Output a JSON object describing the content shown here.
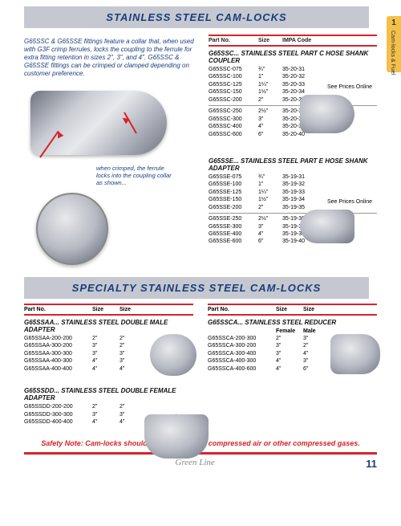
{
  "sideTab": {
    "num": "1",
    "label": "Cam-locks & Fuel"
  },
  "header1": "STAINLESS STEEL CAM-LOCKS",
  "header2": "SPECIALTY STAINLESS STEEL CAM-LOCKS",
  "intro": "G65SSC & G65SSE fittings feature a collar that, when used with G3F crimp ferrules, locks the coupling to the ferrule for extra fitting retention in sizes 2\", 3\", and 4\". G65SSC & G65SSE fittings can be crimped or clamped depending on customer preference.",
  "callout": "when crimped, the ferrule locks into the coupling collar as shown...",
  "tblHdr": {
    "part": "Part No.",
    "size": "Size",
    "impa": "IMPA Code"
  },
  "priceNote": "See Prices Online",
  "sectionC": {
    "title": "G65SSC... STAINLESS STEEL PART C HOSE SHANK COUPLER",
    "rows1": [
      {
        "p": "G65SSC-075",
        "s": "¾\"",
        "i": "35-20-31"
      },
      {
        "p": "G65SSC-100",
        "s": "1\"",
        "i": "35-20-32"
      },
      {
        "p": "G65SSC-125",
        "s": "1¼\"",
        "i": "35-20-33"
      },
      {
        "p": "G65SSC-150",
        "s": "1½\"",
        "i": "35-20-34"
      },
      {
        "p": "G65SSC-200",
        "s": "2\"",
        "i": "35-20-35"
      }
    ],
    "rows2": [
      {
        "p": "G65SSC-250",
        "s": "2½\"",
        "i": "35-20-36"
      },
      {
        "p": "G65SSC-300",
        "s": "3\"",
        "i": "35-20-37"
      },
      {
        "p": "G65SSC-400",
        "s": "4\"",
        "i": "35-20-38"
      },
      {
        "p": "G65SSC-600",
        "s": "6\"",
        "i": "35-20-40"
      }
    ]
  },
  "sectionE": {
    "title": "G65SSE... STAINLESS STEEL PART E HOSE SHANK ADAPTER",
    "rows1": [
      {
        "p": "G65SSE-075",
        "s": "¾\"",
        "i": "35-19-31"
      },
      {
        "p": "G65SSE-100",
        "s": "1\"",
        "i": "35-19-32"
      },
      {
        "p": "G65SSE-125",
        "s": "1¼\"",
        "i": "35-19-33"
      },
      {
        "p": "G65SSE-150",
        "s": "1½\"",
        "i": "35-19-34"
      },
      {
        "p": "G65SSE-200",
        "s": "2\"",
        "i": "35-19-35"
      }
    ],
    "rows2": [
      {
        "p": "G65SSE-250",
        "s": "2½\"",
        "i": "35-19-36"
      },
      {
        "p": "G65SSE-300",
        "s": "3\"",
        "i": "35-19-37"
      },
      {
        "p": "G65SSE-400",
        "s": "4\"",
        "i": "35-19-38"
      },
      {
        "p": "G65SSE-600",
        "s": "6\"",
        "i": "35-19-40"
      }
    ]
  },
  "tblHdr2": {
    "part": "Part No.",
    "s1": "Size",
    "s2": "Size"
  },
  "sectionAA": {
    "title": "G65SSAA... STAINLESS STEEL DOUBLE MALE ADAPTER",
    "rows": [
      {
        "p": "G65SSAA-200-200",
        "s1": "2\"",
        "s2": "2\""
      },
      {
        "p": "G65SSAA-300-200",
        "s1": "3\"",
        "s2": "2\""
      },
      {
        "p": "G65SSAA-300-300",
        "s1": "3\"",
        "s2": "3\""
      },
      {
        "p": "G65SSAA-400-300",
        "s1": "4\"",
        "s2": "3\""
      },
      {
        "p": "G65SSAA-400-400",
        "s1": "4\"",
        "s2": "4\""
      }
    ]
  },
  "sectionDD": {
    "title": "G65SSDD... STAINLESS STEEL DOUBLE FEMALE ADAPTER",
    "rows": [
      {
        "p": "G65SSDD-200-200",
        "s1": "2\"",
        "s2": "2\""
      },
      {
        "p": "G65SSDD-300-300",
        "s1": "3\"",
        "s2": "3\""
      },
      {
        "p": "G65SSDD-400-400",
        "s1": "4\"",
        "s2": "4\""
      }
    ]
  },
  "sectionCA": {
    "title": "G65SSCA... STAINLESS STEEL REDUCER",
    "sub": {
      "f": "Female",
      "m": "Male"
    },
    "rows": [
      {
        "p": "G65SSCA-200-300",
        "s1": "2\"",
        "s2": "3\""
      },
      {
        "p": "G65SSCA-300-200",
        "s1": "3\"",
        "s2": "2\""
      },
      {
        "p": "G65SSCA-300-400",
        "s1": "3\"",
        "s2": "4\""
      },
      {
        "p": "G65SSCA-400-300",
        "s1": "4\"",
        "s2": "3\""
      },
      {
        "p": "G65SSCA-400-600",
        "s1": "4\"",
        "s2": "6\""
      }
    ]
  },
  "safety": "Safety Note: Cam-locks should not be used with compressed air or other compressed gases.",
  "footer": {
    "brand": "Green Line",
    "page": "11"
  },
  "colors": {
    "headerBg": "#c5c8d0",
    "headerText": "#1a3d7c",
    "ruleRed": "#d8232a",
    "tabBg": "#f3c04a"
  }
}
